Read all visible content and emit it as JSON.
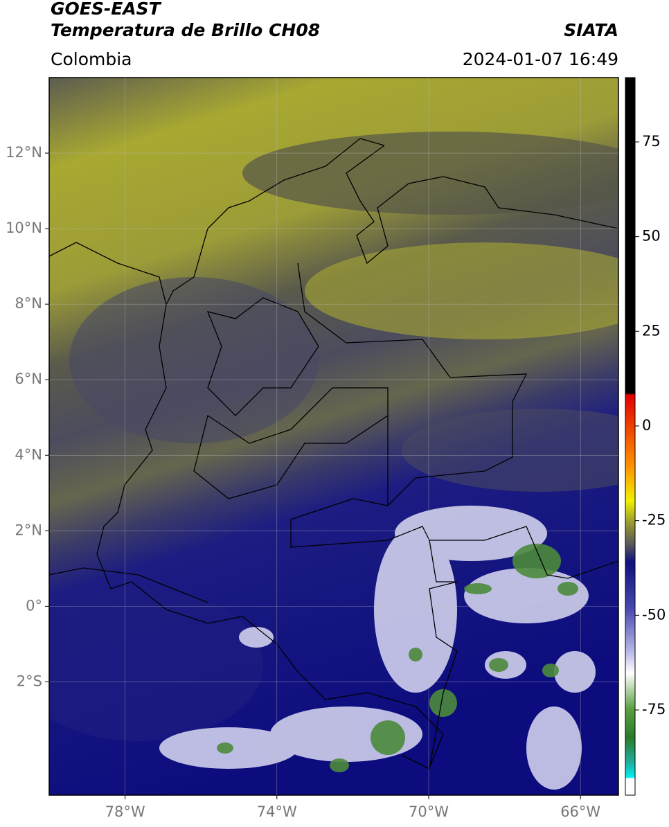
{
  "header": {
    "source": "GOES-EAST",
    "product": "Temperatura de Brillo CH08",
    "region": "Colombia",
    "org": "SIATA",
    "datetime": "2024-01-07 16:49"
  },
  "map": {
    "lonlim": [
      -80,
      -65
    ],
    "latlim": [
      -5,
      14
    ],
    "lon_ticks": [
      {
        "value": -78,
        "label": "78°W"
      },
      {
        "value": -74,
        "label": "74°W"
      },
      {
        "value": -70,
        "label": "70°W"
      },
      {
        "value": -66,
        "label": "66°W"
      }
    ],
    "lat_ticks": [
      {
        "value": 12,
        "label": "12°N"
      },
      {
        "value": 10,
        "label": "10°N"
      },
      {
        "value": 8,
        "label": "8°N"
      },
      {
        "value": 6,
        "label": "6°N"
      },
      {
        "value": 4,
        "label": "4°N"
      },
      {
        "value": 2,
        "label": "2°N"
      },
      {
        "value": 0,
        "label": "0°"
      },
      {
        "value": -2,
        "label": "2°S"
      }
    ]
  },
  "colorbar": {
    "lim": [
      -97.5,
      92
    ],
    "ticks": [
      75,
      50,
      25,
      0,
      -25,
      -50,
      -75
    ]
  }
}
